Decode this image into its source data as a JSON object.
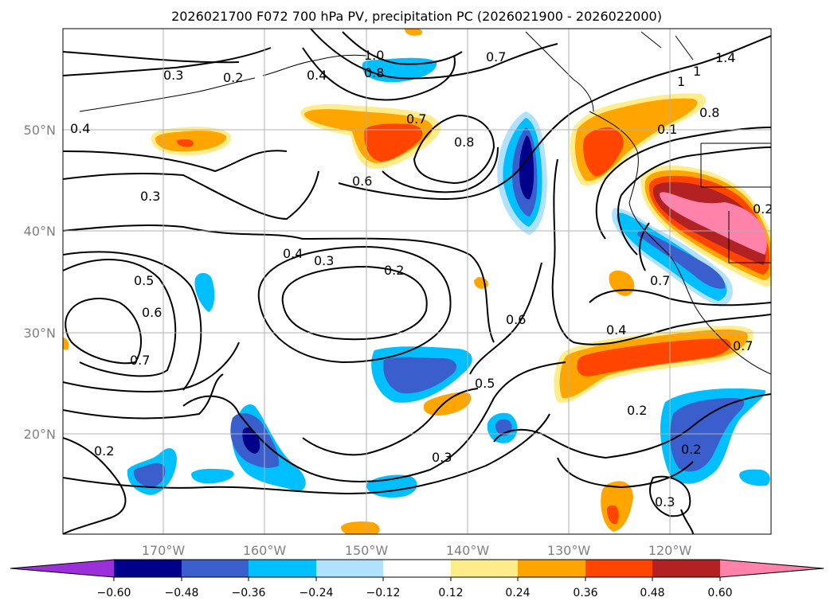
{
  "title": "2026021700 F072 700 hPa PV, precipitation PC (2026021900 - 2026022000)",
  "map": {
    "lon_labels": [
      "170°W",
      "160°W",
      "150°W",
      "140°W",
      "130°W",
      "120°W"
    ],
    "lat_labels": [
      "50°N",
      "40°N",
      "30°N",
      "20°N"
    ],
    "grid": true
  },
  "contour_labels": [
    "0.3",
    "0.2",
    "0.4",
    "1.0",
    "0.8",
    "0.7",
    "0.4",
    "0.7",
    "0.8",
    "0.6",
    "0.3",
    "0.4",
    "0.3",
    "0.2",
    "0.5",
    "0.6",
    "0.7",
    "0.6",
    "0.5",
    "0.4",
    "0.7",
    "0.2",
    "0.2",
    "0.3",
    "0.3",
    "0.2",
    "1",
    "1",
    "1.4",
    "0.8",
    "0.1",
    "0.2",
    "0.7"
  ],
  "colorbar": {
    "ticks": [
      "−0.60",
      "−0.48",
      "−0.36",
      "−0.24",
      "−0.12",
      "0.12",
      "0.24",
      "0.36",
      "0.48",
      "0.60"
    ],
    "colors": [
      "#9b30d9",
      "#00008b",
      "#3a5fcd",
      "#00bfff",
      "#b0e2ff",
      "#ffffff",
      "#ffec8b",
      "#ffa500",
      "#ff4500",
      "#b22222",
      "#ff82ab"
    ]
  }
}
